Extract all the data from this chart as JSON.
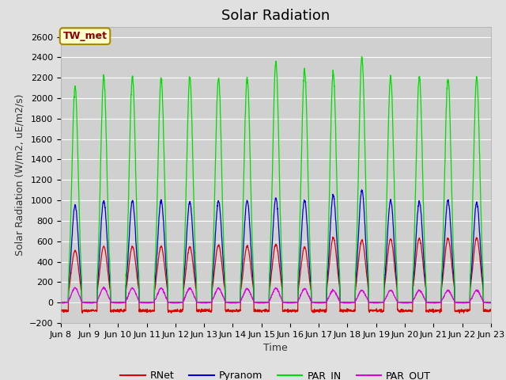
{
  "title": "Solar Radiation",
  "ylabel": "Solar Radiation (W/m2, uE/m2/s)",
  "xlabel": "Time",
  "ylim": [
    -200,
    2700
  ],
  "yticks": [
    -200,
    0,
    200,
    400,
    600,
    800,
    1000,
    1200,
    1400,
    1600,
    1800,
    2000,
    2200,
    2400,
    2600
  ],
  "fig_bg": "#e0e0e0",
  "plot_bg": "#d0d0d0",
  "title_fontsize": 13,
  "label_fontsize": 9,
  "tick_fontsize": 8,
  "station_label": "TW_met",
  "station_label_color": "#8b0000",
  "station_box_color": "#ffffcc",
  "n_days": 15,
  "day_labels": [
    "Jun 8",
    "Jun 9",
    "Jun 10",
    "Jun 11",
    "Jun 12",
    "Jun 13",
    "Jun 14",
    "Jun 15",
    "Jun 16",
    "Jun 17",
    "Jun 18",
    "Jun 19",
    "Jun 20",
    "Jun 21",
    "Jun 22",
    "Jun 23"
  ],
  "par_in_peaks": [
    2120,
    2210,
    2210,
    2200,
    2200,
    2200,
    2200,
    2350,
    2280,
    2250,
    2400,
    2210,
    2210,
    2200,
    2200
  ],
  "pyranom_peaks": [
    950,
    1000,
    1000,
    1000,
    980,
    1000,
    1000,
    1020,
    1000,
    1050,
    1100,
    1000,
    990,
    1000,
    980
  ],
  "rnet_peaks": [
    510,
    550,
    550,
    550,
    545,
    560,
    550,
    570,
    545,
    635,
    610,
    620,
    630,
    625,
    630
  ],
  "par_out_peaks": [
    145,
    145,
    140,
    140,
    140,
    140,
    135,
    140,
    135,
    120,
    120,
    120,
    120,
    120,
    120
  ],
  "rnet_night": -80,
  "colors": {
    "RNet": "#dd0000",
    "Pyranom": "#0000dd",
    "PAR_IN": "#00dd00",
    "PAR_OUT": "#dd00dd"
  }
}
